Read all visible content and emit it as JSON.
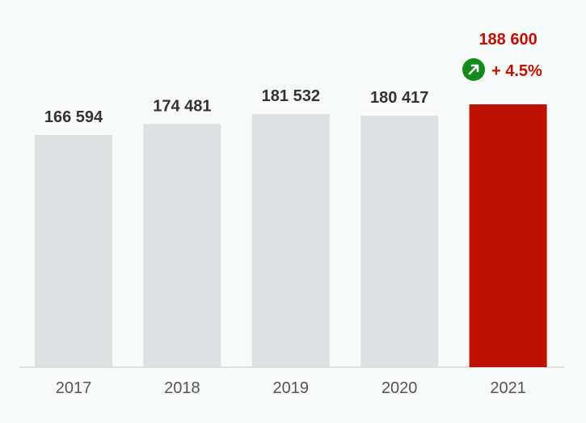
{
  "chart_data": {
    "type": "bar",
    "categories": [
      "2017",
      "2018",
      "2019",
      "2020",
      "2021"
    ],
    "values": [
      166594,
      174481,
      181532,
      180417,
      188600
    ],
    "value_labels": [
      "166 594",
      "174 481",
      "181 532",
      "180 417",
      "188 600"
    ],
    "highlight_index": 4,
    "change_label": "+ 4.5%",
    "change_direction": "up",
    "colors": {
      "bar": "#dfe0e3",
      "highlight_bar": "#be1100",
      "highlight_text": "#c00f00",
      "value_text": "#333333",
      "tick_text": "#555555",
      "baseline": "#d5d7da",
      "change_icon": "#138a1c",
      "background": "#f8f9f9"
    },
    "title": "",
    "xlabel": "",
    "ylabel": "",
    "grid": false,
    "legend": "none"
  }
}
